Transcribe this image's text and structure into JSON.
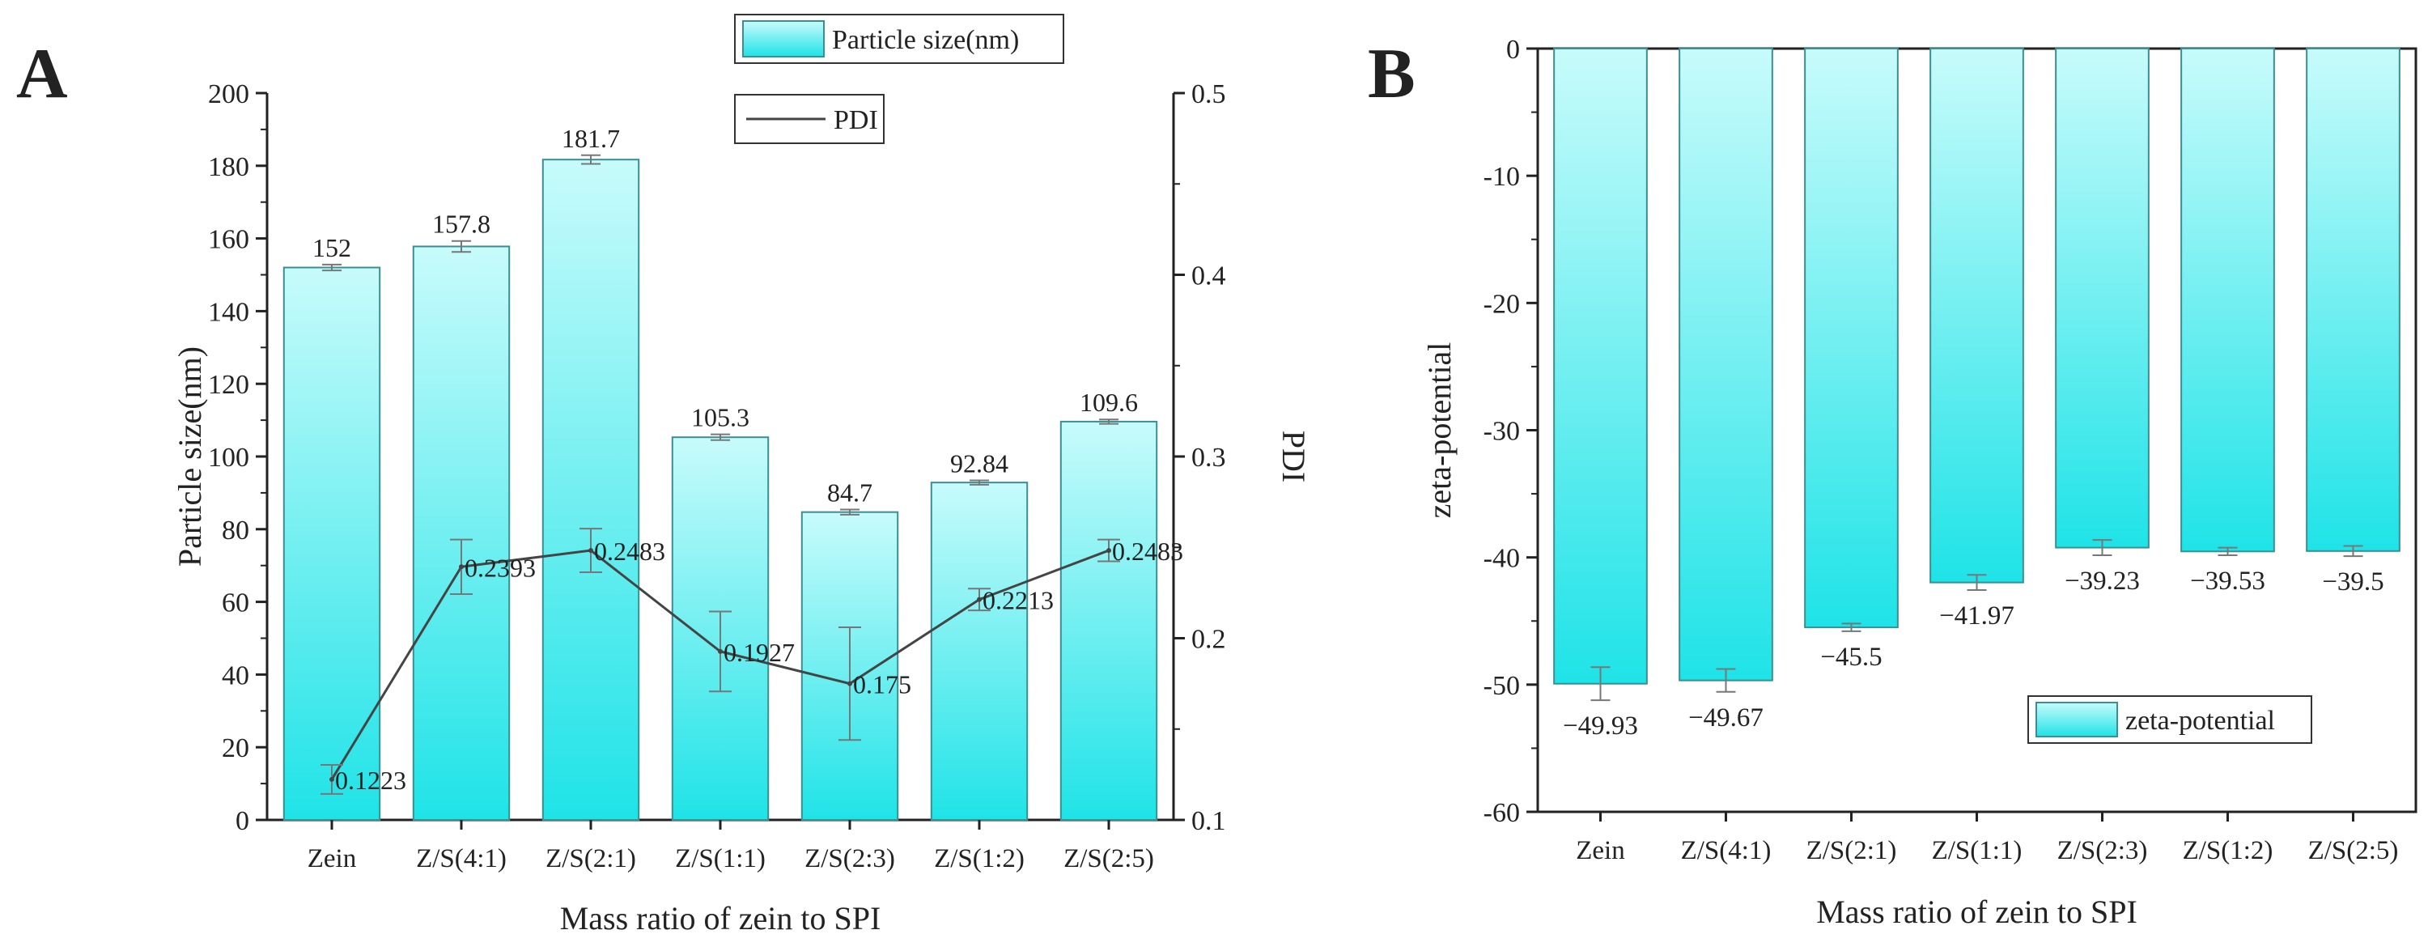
{
  "colors": {
    "bar_top": "#c8fbfb",
    "bar_bottom": "#1fe3e7",
    "bar_stroke": "#3a8f93",
    "line": "#444444",
    "axis": "#222222"
  },
  "chart_data": [
    {
      "panel": "A",
      "type": "bar",
      "categories": [
        "Zein",
        "Z/S(4:1)",
        "Z/S(2:1)",
        "Z/S(1:1)",
        "Z/S(2:3)",
        "Z/S(1:2)",
        "Z/S(2:5)"
      ],
      "xlabel": "Mass ratio of zein to SPI",
      "ylabel": "Particle size(nm)",
      "y2label": "PDI",
      "ylim": [
        0,
        200
      ],
      "yticks": [
        0,
        20,
        40,
        60,
        80,
        100,
        120,
        140,
        160,
        180,
        200
      ],
      "y2lim": [
        0.1,
        0.5
      ],
      "y2ticks": [
        "0.1",
        "0.2",
        "0.3",
        "0.4",
        "0.5"
      ],
      "series": [
        {
          "name": "Particle size(nm)",
          "type": "bar",
          "values": [
            152,
            157.8,
            181.7,
            105.3,
            84.7,
            92.84,
            109.6
          ],
          "labels": [
            "152",
            "157.8",
            "181.7",
            "105.3",
            "84.7",
            "92.84",
            "109.6"
          ],
          "errors": [
            0.8,
            1.5,
            1.2,
            0.8,
            0.7,
            0.6,
            0.6
          ]
        },
        {
          "name": "PDI",
          "type": "line",
          "axis": "right",
          "values": [
            0.1223,
            0.2393,
            0.2483,
            0.1927,
            0.175,
            0.2213,
            0.2483
          ],
          "labels": [
            "0.1223",
            "0.2393",
            "0.2483",
            "0.1927",
            "0.175",
            "0.2213",
            "0.2483"
          ],
          "errors": [
            0.008,
            0.015,
            0.012,
            0.022,
            0.031,
            0.006,
            0.006
          ]
        }
      ],
      "legend": [
        "Particle size(nm)",
        "PDI"
      ],
      "legend_position": "top-right"
    },
    {
      "panel": "B",
      "type": "bar",
      "categories": [
        "Zein",
        "Z/S(4:1)",
        "Z/S(2:1)",
        "Z/S(1:1)",
        "Z/S(2:3)",
        "Z/S(1:2)",
        "Z/S(2:5)"
      ],
      "xlabel": "Mass ratio of zein to SPI",
      "ylabel": "zeta-potential",
      "ylim": [
        -60,
        0
      ],
      "yticks": [
        0,
        -10,
        -20,
        -30,
        -40,
        -50,
        -60
      ],
      "series": [
        {
          "name": "zeta-potential",
          "type": "bar",
          "values": [
            -49.93,
            -49.67,
            -45.5,
            -41.97,
            -39.23,
            -39.53,
            -39.5
          ],
          "labels": [
            "−49.93",
            "−49.67",
            "−45.5",
            "−41.97",
            "−39.23",
            "−39.53",
            "−39.5"
          ],
          "errors": [
            1.3,
            0.9,
            0.3,
            0.6,
            0.6,
            0.3,
            0.4
          ]
        }
      ],
      "legend": [
        "zeta-potential"
      ],
      "legend_position": "bottom-right"
    }
  ],
  "panels": {
    "a_label": "A",
    "b_label": "B"
  }
}
